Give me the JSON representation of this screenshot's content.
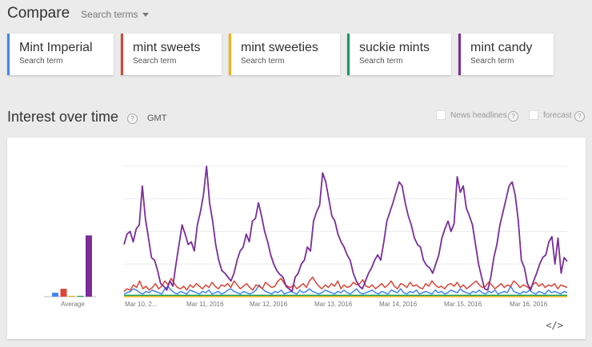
{
  "header": {
    "title": "Compare",
    "subtitle": "Search terms"
  },
  "terms": [
    {
      "name": "Mint Imperial",
      "type": "Search term",
      "color": "#4285f4"
    },
    {
      "name": "mint sweets",
      "type": "Search term",
      "color": "#db4437"
    },
    {
      "name": "mint sweeties",
      "type": "Search term",
      "color": "#f4b400"
    },
    {
      "name": "suckie mints",
      "type": "Search term",
      "color": "#0f9d58"
    },
    {
      "name": "mint candy",
      "type": "Search term",
      "color": "#7b2d9a"
    }
  ],
  "section": {
    "title": "Interest over time",
    "help": "?",
    "timezone": "GMT",
    "news_headlines": "News headlines",
    "forecast": "forecast"
  },
  "embed_icon": "</>",
  "chart_data": {
    "type": "line",
    "x_labels": [
      "Mar 10, 2...",
      "Mar 11, 2016",
      "Mar 12, 2016",
      "Mar 13, 2016",
      "Mar 14, 2016",
      "Mar 15, 2016",
      "Mar 16, 2016"
    ],
    "average_label": "Average",
    "averages": [
      {
        "name": "Mint Imperial",
        "value": 3
      },
      {
        "name": "mint sweets",
        "value": 6
      },
      {
        "name": "mint sweeties",
        "value": 0.5
      },
      {
        "name": "suckie mints",
        "value": 0.5
      },
      {
        "name": "mint candy",
        "value": 47
      }
    ],
    "ylim": [
      0,
      100
    ],
    "grid": true,
    "series": [
      {
        "name": "mint candy",
        "color": "#7b2d9a",
        "values": [
          40,
          48,
          50,
          42,
          52,
          55,
          85,
          60,
          45,
          30,
          28,
          20,
          10,
          8,
          5,
          12,
          8,
          25,
          40,
          55,
          48,
          40,
          42,
          35,
          55,
          65,
          78,
          100,
          72,
          58,
          40,
          28,
          20,
          18,
          15,
          12,
          18,
          28,
          35,
          38,
          48,
          42,
          58,
          60,
          72,
          62,
          50,
          42,
          32,
          25,
          20,
          17,
          15,
          8,
          6,
          4,
          15,
          18,
          25,
          28,
          38,
          35,
          58,
          65,
          70,
          95,
          88,
          75,
          62,
          58,
          48,
          42,
          38,
          32,
          28,
          18,
          12,
          8,
          6,
          12,
          18,
          22,
          28,
          32,
          28,
          42,
          58,
          65,
          72,
          80,
          88,
          85,
          72,
          62,
          55,
          45,
          40,
          38,
          28,
          24,
          22,
          18,
          25,
          32,
          45,
          52,
          58,
          50,
          56,
          92,
          80,
          85,
          68,
          62,
          55,
          40,
          25,
          15,
          6,
          5,
          15,
          30,
          40,
          55,
          65,
          75,
          85,
          88,
          78,
          58,
          28,
          22,
          10,
          5,
          12,
          18,
          25,
          30,
          32,
          42,
          46,
          25,
          45,
          18,
          30,
          27
        ]
      },
      {
        "name": "mint sweets",
        "color": "#db4437",
        "values": [
          4,
          6,
          5,
          9,
          7,
          12,
          6,
          8,
          5,
          7,
          10,
          6,
          8,
          12,
          9,
          14,
          10,
          7,
          6,
          8,
          5,
          9,
          7,
          10,
          8,
          6,
          9,
          7,
          11,
          8,
          6,
          9,
          8,
          10,
          7,
          12,
          9,
          6,
          8,
          10,
          7,
          5,
          9,
          8,
          6,
          11,
          9,
          7,
          8,
          12,
          14,
          10,
          8,
          7,
          9,
          6,
          8,
          10,
          7,
          12,
          15,
          11,
          8,
          6,
          9,
          7,
          10,
          8,
          12,
          6,
          9,
          7,
          8,
          11,
          9,
          10,
          13,
          8,
          7,
          9,
          6,
          8,
          10,
          7,
          9,
          12,
          8,
          6,
          10,
          9,
          7,
          11,
          8,
          9,
          7,
          6,
          10,
          8,
          12,
          9,
          7,
          8,
          6,
          9,
          10,
          8,
          11,
          7,
          9,
          6,
          8,
          10,
          12,
          9,
          7,
          8,
          11,
          9,
          6,
          8,
          10,
          7,
          9,
          8,
          12,
          10,
          7,
          9,
          8,
          6,
          9,
          11,
          8,
          10,
          7,
          9,
          8,
          10,
          6,
          9,
          8,
          7
        ]
      },
      {
        "name": "Mint Imperial",
        "color": "#4285f4",
        "values": [
          2,
          3,
          4,
          6,
          5,
          3,
          2,
          4,
          3,
          5,
          4,
          3,
          2,
          6,
          8,
          5,
          3,
          2,
          4,
          3,
          2,
          5,
          4,
          3,
          2,
          4,
          3,
          5,
          2,
          3,
          4,
          2,
          3,
          5,
          6,
          4,
          3,
          2,
          4,
          3,
          2,
          3,
          5,
          9,
          6,
          4,
          3,
          2,
          4,
          3,
          5,
          2,
          3,
          4,
          3,
          2,
          5,
          3,
          4,
          6,
          4,
          3,
          2,
          3,
          5,
          4,
          3,
          2,
          4,
          3,
          5,
          3,
          2,
          4,
          6,
          3,
          2,
          3,
          4,
          5,
          3,
          2,
          4,
          3,
          2,
          5,
          4,
          3,
          6,
          3,
          2,
          4,
          3,
          5,
          2,
          3,
          4,
          3,
          2,
          5,
          3,
          4,
          2,
          3,
          5,
          4,
          3,
          6,
          4,
          3,
          2,
          4,
          3,
          5,
          3,
          2,
          4,
          3,
          5,
          2,
          3,
          4,
          3,
          8,
          4,
          3,
          2,
          4,
          3,
          5,
          3,
          2,
          4,
          3,
          2,
          5,
          3,
          4,
          3,
          2,
          4,
          3
        ]
      },
      {
        "name": "suckie mints",
        "color": "#0f9d58",
        "values": [
          1,
          1,
          1,
          1,
          1,
          1,
          1,
          1,
          1,
          1,
          1,
          1,
          1,
          1,
          1,
          1,
          1,
          1,
          1,
          1,
          1,
          1,
          1,
          1,
          1,
          1,
          1,
          1,
          1,
          1,
          1,
          1,
          1,
          1,
          1,
          1,
          1,
          1,
          1,
          1,
          1,
          1,
          1,
          1,
          1,
          1,
          1,
          1,
          1,
          1,
          1,
          1,
          1,
          1,
          1,
          1,
          1,
          1,
          1,
          1,
          1,
          1,
          1,
          1,
          1,
          1,
          1,
          1,
          1,
          1,
          1,
          1,
          1,
          1,
          1,
          1,
          1,
          1,
          1,
          1,
          1,
          1,
          1,
          1,
          1,
          1,
          1,
          1,
          1,
          1,
          1,
          1,
          1,
          1,
          1,
          1,
          1,
          1,
          1,
          1,
          1,
          1,
          1,
          1,
          1,
          1,
          1,
          1,
          1,
          1,
          1,
          1,
          1,
          1,
          1,
          1,
          1,
          1,
          1,
          1,
          1,
          1,
          1,
          1,
          1,
          1,
          1,
          1,
          1,
          1,
          1,
          1,
          1,
          1,
          1,
          1,
          1,
          1,
          1,
          1,
          1,
          1
        ]
      },
      {
        "name": "mint sweeties",
        "color": "#f4b400",
        "values": [
          0,
          0,
          0,
          0,
          0,
          0,
          0,
          0,
          0,
          0,
          0,
          0,
          0,
          0,
          0,
          0,
          0,
          0,
          0,
          0,
          0,
          0,
          0,
          0,
          0,
          0,
          0,
          0,
          0,
          0,
          0,
          0,
          0,
          0,
          0,
          0,
          0,
          0,
          0,
          0,
          0,
          0,
          0,
          0,
          0,
          0,
          0,
          0,
          0,
          0,
          0,
          0,
          0,
          0,
          0,
          0,
          0,
          0,
          0,
          0,
          0,
          0,
          0,
          0,
          0,
          0,
          0,
          0,
          0,
          0,
          0,
          0,
          0,
          0,
          0,
          0,
          0,
          0,
          0,
          0,
          0,
          0,
          0,
          0,
          0,
          0,
          0,
          0,
          0,
          0,
          0,
          0,
          0,
          0,
          0,
          0,
          0,
          0,
          0,
          0,
          0,
          0,
          0,
          0,
          0,
          0,
          0,
          0,
          0,
          0,
          0,
          0,
          0,
          0,
          0,
          0,
          0,
          0,
          0,
          0,
          0,
          0,
          0,
          0,
          0,
          0,
          0,
          0,
          0,
          0,
          0,
          0,
          0,
          0,
          0,
          0,
          0,
          0,
          0,
          0,
          0,
          0
        ]
      }
    ]
  }
}
